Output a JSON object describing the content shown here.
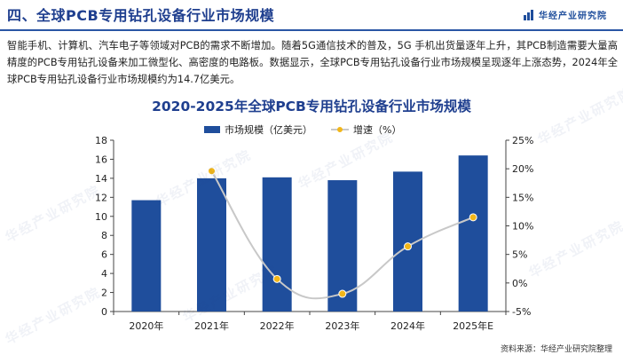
{
  "header": {
    "title": "四、全球PCB专用钻孔设备行业市场规模",
    "logo_text": "华经产业研究院"
  },
  "paragraph": "智能手机、计算机、汽车电子等领域对PCB的需求不断增加。随着5G通信技术的普及，5G 手机出货量逐年上升，其PCB制造需要大量高精度的PCB专用钻孔设备来加工微型化、高密度的电路板。数据显示，全球PCB专用钻孔设备行业市场规模呈现逐年上涨态势，2024年全球PCB专用钻孔设备行业市场规模约为14.7亿美元。",
  "watermark": "华经产业研究院",
  "source": "资料来源：华经产业研究院整理",
  "colors": {
    "bar": "#1f4e9c",
    "line": "#c8c8c8",
    "marker": "#f2b619",
    "title": "#1f3f8f"
  },
  "chart_data": {
    "type": "bar",
    "title": "2020-2025年全球PCB专用钻孔设备行业市场规模",
    "categories": [
      "2020年",
      "2021年",
      "2022年",
      "2023年",
      "2024年",
      "2025年E"
    ],
    "series": [
      {
        "name": "市场规模（亿美元）",
        "type": "bar",
        "axis": "left",
        "values": [
          11.7,
          14.0,
          14.1,
          13.8,
          14.7,
          16.4
        ]
      },
      {
        "name": "增速（%）",
        "type": "line",
        "axis": "right",
        "values": [
          null,
          19.6,
          0.7,
          -1.9,
          6.4,
          11.5
        ]
      }
    ],
    "ylim_left": [
      0,
      18
    ],
    "yticks_left": [
      "0",
      "2",
      "4",
      "6",
      "8",
      "10",
      "12",
      "14",
      "16",
      "18"
    ],
    "ylim_right": [
      -5,
      25
    ],
    "yticks_right": [
      "-5%",
      "0%",
      "5%",
      "10%",
      "15%",
      "20%",
      "25%"
    ],
    "legend_position": "top-center",
    "grid": false
  }
}
